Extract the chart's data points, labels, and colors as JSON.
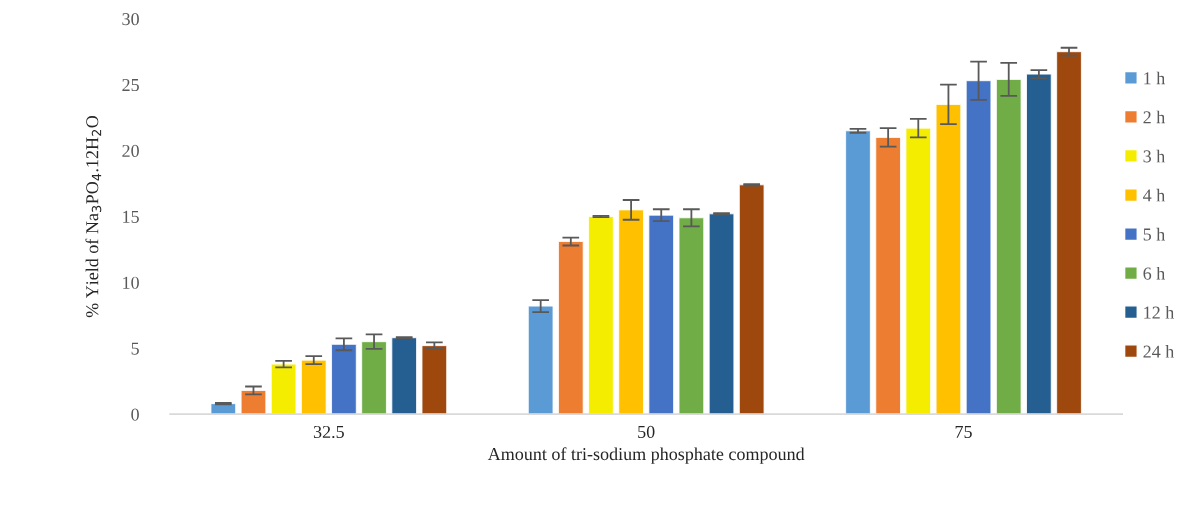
{
  "chart_data": {
    "type": "bar",
    "xlabel": "Amount of tri-sodium phosphate compound",
    "ylabel": "% Yield of Na$_{3}$PO$_{4}$.12H$_{2}$O",
    "categories": [
      "32.5",
      "50",
      "75"
    ],
    "ylim": [
      0,
      30
    ],
    "yticks": [
      0,
      5,
      10,
      15,
      20,
      25,
      30
    ],
    "grid": false,
    "legend": "right",
    "series": [
      {
        "name": "1 h",
        "color": "#5b9bd5",
        "values": [
          0.8,
          8.2,
          21.5
        ],
        "errors": [
          0.05,
          0.45,
          0.15
        ]
      },
      {
        "name": "2 h",
        "color": "#ed7d31",
        "values": [
          1.8,
          13.1,
          21.0
        ],
        "errors": [
          0.3,
          0.3,
          0.7
        ]
      },
      {
        "name": "3 h",
        "color": "#f5ed00",
        "values": [
          3.8,
          15.0,
          21.7
        ],
        "errors": [
          0.25,
          0.05,
          0.7
        ]
      },
      {
        "name": "4 h",
        "color": "#ffc000",
        "values": [
          4.1,
          15.5,
          23.5
        ],
        "errors": [
          0.3,
          0.75,
          1.5
        ]
      },
      {
        "name": "5 h",
        "color": "#4472c4",
        "values": [
          5.3,
          15.1,
          25.3
        ],
        "errors": [
          0.45,
          0.45,
          1.45
        ]
      },
      {
        "name": "6 h",
        "color": "#70ad47",
        "values": [
          5.5,
          14.9,
          25.4
        ],
        "errors": [
          0.55,
          0.65,
          1.25
        ]
      },
      {
        "name": "12 h",
        "color": "#255e91",
        "values": [
          5.8,
          15.2,
          25.8
        ],
        "errors": [
          0.05,
          0.05,
          0.3
        ]
      },
      {
        "name": "24 h",
        "color": "#9e480e",
        "values": [
          5.2,
          17.4,
          27.5
        ],
        "errors": [
          0.25,
          0.05,
          0.3
        ]
      }
    ]
  }
}
